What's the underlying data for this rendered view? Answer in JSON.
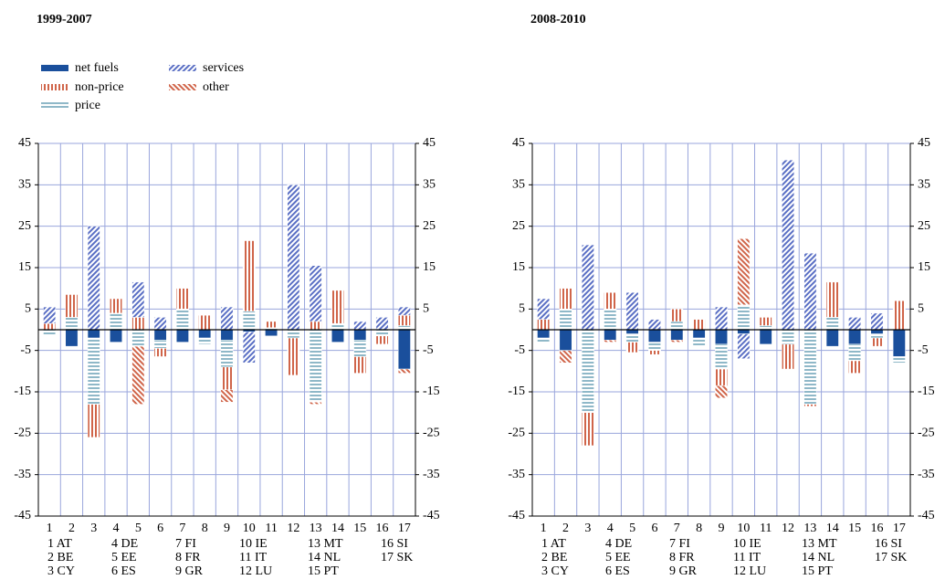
{
  "chart_data": [
    {
      "type": "stacked-bar",
      "title": "1999-2007",
      "categories": [
        "1",
        "2",
        "3",
        "4",
        "5",
        "6",
        "7",
        "8",
        "9",
        "10",
        "11",
        "12",
        "13",
        "14",
        "15",
        "16",
        "17"
      ],
      "key": [
        "1 AT",
        "2 BE",
        "3 CY",
        "4 DE",
        "5 EE",
        "6 ES",
        "7 FI",
        "8 FR",
        "9 GR",
        "10 IE",
        "11 IT",
        "12 LU",
        "13 MT",
        "14 NL",
        "15 PT",
        "16 SI",
        "17 SK"
      ],
      "ylim": [
        -45,
        45
      ],
      "yticks": [
        45,
        35,
        25,
        15,
        5,
        -5,
        -15,
        -25,
        -35,
        -45
      ],
      "grid": true,
      "legend": "top-left",
      "series": [
        {
          "name": "net fuels",
          "color": "#1a4f9c",
          "pattern": "solid",
          "values": [
            0,
            -4,
            -2,
            -3,
            0,
            -2.5,
            -3,
            -2,
            -2.5,
            -0.5,
            -1.5,
            0,
            0,
            -3,
            -2.5,
            0,
            -9.5
          ]
        },
        {
          "name": "price",
          "color": "#8fb8c8",
          "pattern": "horizontal",
          "values": [
            -1.5,
            3,
            -16,
            4,
            -4,
            -2,
            5,
            -1.5,
            -6.5,
            4.5,
            0.5,
            -2,
            -17.5,
            1.5,
            -4,
            -1.5,
            1
          ]
        },
        {
          "name": "non-price",
          "color": "#d0654a",
          "pattern": "vertical",
          "values": [
            1.5,
            5.5,
            -8,
            3.5,
            3,
            -2,
            5,
            3.5,
            -5.5,
            17,
            1.5,
            -9,
            2,
            8,
            -4,
            -2,
            2.5
          ]
        },
        {
          "name": "services",
          "color": "#5a6fc4",
          "pattern": "diagonal-right",
          "values": [
            4,
            0,
            25,
            0,
            8.5,
            3,
            0,
            0,
            5.5,
            -7.5,
            0,
            35,
            13.5,
            0,
            2,
            3,
            2
          ]
        },
        {
          "name": "other",
          "color": "#d0654a",
          "pattern": "diagonal-left",
          "values": [
            0,
            0,
            0,
            0,
            -14,
            0,
            0,
            0,
            -3,
            0,
            0,
            0,
            -0.5,
            0,
            0,
            0,
            -1
          ]
        }
      ]
    },
    {
      "type": "stacked-bar",
      "title": "2008-2010",
      "categories": [
        "1",
        "2",
        "3",
        "4",
        "5",
        "6",
        "7",
        "8",
        "9",
        "10",
        "11",
        "12",
        "13",
        "14",
        "15",
        "16",
        "17"
      ],
      "key": [
        "1 AT",
        "2 BE",
        "3 CY",
        "4 DE",
        "5 EE",
        "6 ES",
        "7 FI",
        "8 FR",
        "9 GR",
        "10 IE",
        "11 IT",
        "12 LU",
        "13 MT",
        "14 NL",
        "15 PT",
        "16 SI",
        "17 SK"
      ],
      "ylim": [
        -45,
        45
      ],
      "yticks": [
        45,
        35,
        25,
        15,
        5,
        -5,
        -15,
        -25,
        -35,
        -45
      ],
      "grid": true,
      "series": [
        {
          "values": [
            -2,
            -5,
            0,
            -2.5,
            -1,
            -3,
            -2.5,
            -2,
            -3.5,
            -1,
            -3.5,
            0,
            0,
            -4,
            -3.5,
            -1,
            -6.5
          ]
        },
        {
          "values": [
            -1,
            5,
            -20,
            5,
            -2,
            -2,
            2,
            -2,
            -6,
            6,
            1,
            -3.5,
            -18,
            3,
            -4,
            -1,
            -1.5
          ]
        },
        {
          "values": [
            2.5,
            5,
            -8,
            4,
            -2.5,
            -1,
            3,
            2.5,
            -4,
            0,
            2,
            -6,
            -0.5,
            8.5,
            -3,
            -2,
            7
          ]
        },
        {
          "values": [
            5,
            0,
            20.5,
            0,
            9,
            2.5,
            0,
            0,
            5.5,
            -6,
            0,
            41,
            18.5,
            0,
            3,
            4,
            0
          ]
        },
        {
          "values": [
            0,
            -3,
            0,
            -0.5,
            0,
            0,
            -0.5,
            0,
            -3,
            16,
            0,
            0,
            0,
            0,
            0,
            0,
            0
          ]
        }
      ]
    }
  ]
}
